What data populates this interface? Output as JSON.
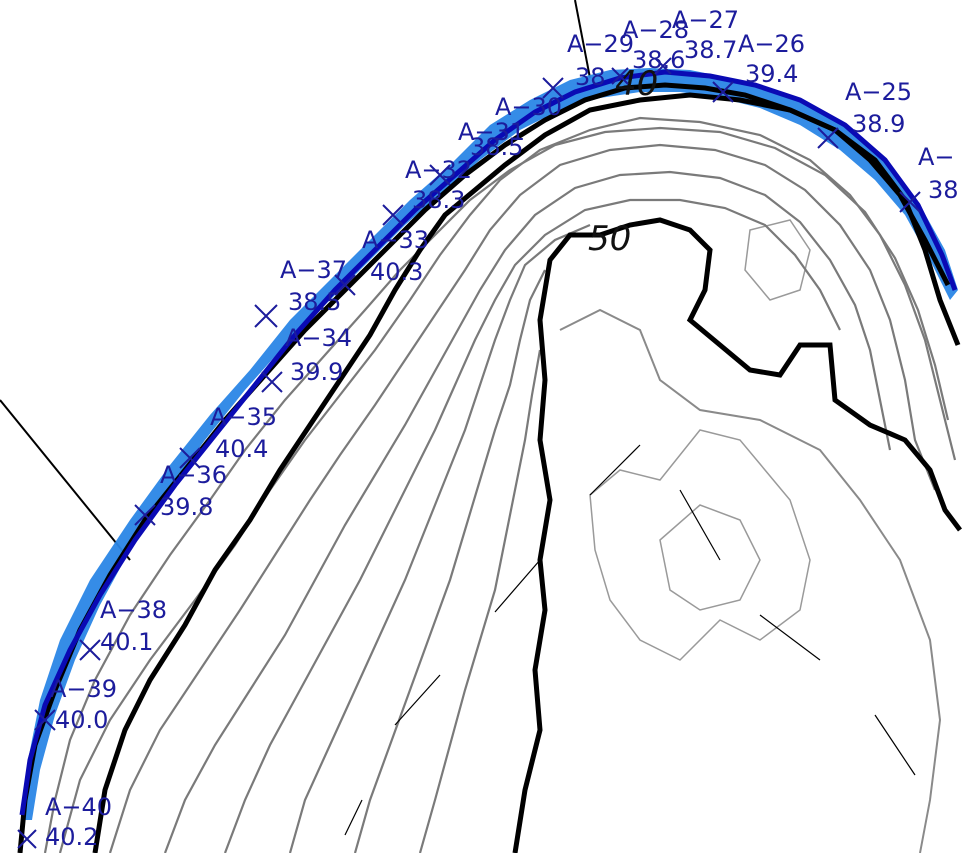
{
  "colors": {
    "label": "#1c1c9c",
    "boundary": "#0a0ab4",
    "water": "#2a86e6",
    "contour_major": "#000000",
    "contour_minor": "#7a7a7a",
    "contour_faint": "#9a9a9a"
  },
  "contour_labels": {
    "c40": "40",
    "c50": "50"
  },
  "survey_points": [
    {
      "id": "A−40",
      "value": "40.2"
    },
    {
      "id": "A−39",
      "value": "40.0"
    },
    {
      "id": "A−38",
      "value": "40.1"
    },
    {
      "id": "A−36",
      "value": "39.8"
    },
    {
      "id": "A−35",
      "value": "40.4"
    },
    {
      "id": "A−34",
      "value": "39.9"
    },
    {
      "id": "A−37",
      "value": "38.5"
    },
    {
      "id": "A−33",
      "value": "40.3"
    },
    {
      "id": "A−32",
      "value": "38.3"
    },
    {
      "id": "A−31",
      "value": "38.5"
    },
    {
      "id": "A−30",
      "value": ""
    },
    {
      "id": "A−29",
      "value": "38"
    },
    {
      "id": "A−28",
      "value": "38.6"
    },
    {
      "id": "A−27",
      "value": "38.7"
    },
    {
      "id": "A−26",
      "value": "39.4"
    },
    {
      "id": "A−25",
      "value": "38.9"
    },
    {
      "id": "A−",
      "value": "38"
    }
  ]
}
